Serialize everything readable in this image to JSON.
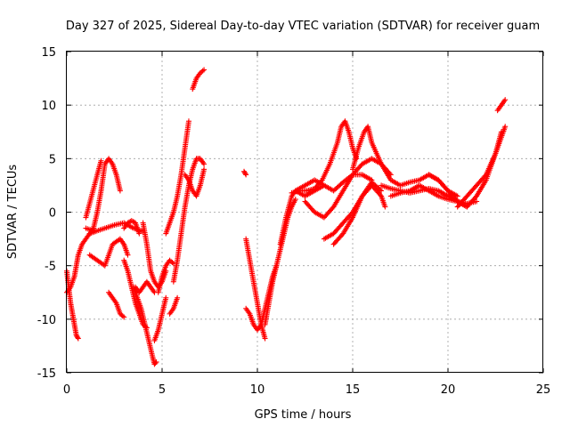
{
  "chart_data": {
    "type": "scatter",
    "title": "Day 327 of 2025, Sidereal Day-to-day VTEC variation (SDTVAR) for receiver guam",
    "xlabel": "GPS time / hours",
    "ylabel": "SDTVAR / TECUs",
    "xlim": [
      0,
      25
    ],
    "ylim": [
      -15,
      15
    ],
    "xticks": [
      0,
      5,
      10,
      15,
      20,
      25
    ],
    "yticks": [
      -15,
      -10,
      -5,
      0,
      5,
      10,
      15
    ],
    "xtick_labels": [
      "0",
      "5",
      "10",
      "15",
      "20",
      "25"
    ],
    "ytick_labels": [
      "-15",
      "-10",
      "-5",
      "0",
      "5",
      "10",
      "15"
    ],
    "grid": true,
    "marker": "+",
    "color": "#ff0000",
    "series": [
      {
        "x": [
          0.0,
          0.2,
          0.4,
          0.5,
          0.6,
          0.8,
          1.0,
          1.2,
          1.5
        ],
        "y": [
          -7.5,
          -7.0,
          -6.0,
          -5.0,
          -4.0,
          -3.0,
          -2.5,
          -2.0,
          -1.8
        ]
      },
      {
        "x": [
          0.0,
          0.1,
          0.2,
          0.3,
          0.4,
          0.5,
          0.6
        ],
        "y": [
          -5.5,
          -7.0,
          -8.5,
          -9.5,
          -10.5,
          -11.5,
          -11.8
        ]
      },
      {
        "x": [
          1.2,
          1.4,
          1.6,
          1.8,
          2.0,
          2.2,
          2.4,
          2.6,
          2.8
        ],
        "y": [
          -2.0,
          -1.5,
          0.0,
          2.0,
          4.5,
          5.0,
          4.5,
          3.5,
          2.0
        ]
      },
      {
        "x": [
          1.0,
          1.3,
          1.6,
          1.8
        ],
        "y": [
          -0.5,
          1.5,
          3.5,
          4.8
        ]
      },
      {
        "x": [
          1.2,
          1.6,
          2.0,
          2.4,
          2.8,
          3.0,
          3.2
        ],
        "y": [
          -4.0,
          -4.5,
          -5.0,
          -3.0,
          -2.5,
          -3.0,
          -4.0
        ]
      },
      {
        "x": [
          1.0,
          1.5,
          2.0,
          2.5,
          3.0,
          3.5,
          4.0
        ],
        "y": [
          -1.5,
          -1.8,
          -1.5,
          -1.2,
          -1.0,
          -1.5,
          -1.8
        ]
      },
      {
        "x": [
          2.2,
          2.4,
          2.6,
          2.8,
          3.0
        ],
        "y": [
          -7.5,
          -8.0,
          -8.5,
          -9.5,
          -9.8
        ]
      },
      {
        "x": [
          3.0,
          3.2,
          3.4,
          3.6,
          3.8,
          4.0,
          4.2
        ],
        "y": [
          -4.5,
          -5.5,
          -7.0,
          -8.5,
          -9.5,
          -10.5,
          -10.8
        ]
      },
      {
        "x": [
          3.5,
          3.7,
          3.9,
          4.1,
          4.3,
          4.5,
          4.6,
          4.7
        ],
        "y": [
          -7.0,
          -8.0,
          -9.0,
          -10.5,
          -12.0,
          -13.5,
          -14.2,
          -14.0
        ]
      },
      {
        "x": [
          3.0,
          3.2,
          3.4,
          3.6,
          3.8
        ],
        "y": [
          -1.5,
          -1.0,
          -0.8,
          -1.0,
          -2.0
        ]
      },
      {
        "x": [
          3.6,
          3.8,
          4.0,
          4.2,
          4.4,
          4.6
        ],
        "y": [
          -7.0,
          -7.5,
          -7.0,
          -6.5,
          -7.0,
          -7.5
        ]
      },
      {
        "x": [
          4.0,
          4.2,
          4.4,
          4.6,
          4.8,
          5.0,
          5.2
        ],
        "y": [
          -1.0,
          -3.0,
          -5.5,
          -6.5,
          -7.0,
          -6.5,
          -5.5
        ]
      },
      {
        "x": [
          4.6,
          4.8,
          5.0,
          5.2
        ],
        "y": [
          -12.0,
          -11.0,
          -9.5,
          -8.0
        ]
      },
      {
        "x": [
          4.8,
          5.0,
          5.2,
          5.4,
          5.6
        ],
        "y": [
          -7.5,
          -6.0,
          -5.0,
          -4.5,
          -4.8
        ]
      },
      {
        "x": [
          5.2,
          5.4,
          5.6,
          5.8,
          6.0,
          6.2,
          6.4
        ],
        "y": [
          -2.0,
          -1.0,
          0.0,
          1.5,
          3.5,
          6.0,
          8.5
        ]
      },
      {
        "x": [
          5.6,
          5.8,
          6.0,
          6.2,
          6.4,
          6.6,
          6.8,
          7.0,
          7.2
        ],
        "y": [
          -6.5,
          -4.5,
          -2.0,
          0.5,
          2.5,
          4.0,
          5.0,
          5.0,
          4.5
        ]
      },
      {
        "x": [
          6.2,
          6.4,
          6.6,
          6.8,
          7.0,
          7.2
        ],
        "y": [
          3.5,
          3.0,
          2.0,
          1.5,
          2.5,
          4.0
        ]
      },
      {
        "x": [
          6.6,
          6.8,
          7.0,
          7.2
        ],
        "y": [
          11.5,
          12.5,
          13.0,
          13.3
        ]
      },
      {
        "x": [
          5.4,
          5.6,
          5.8
        ],
        "y": [
          -9.5,
          -9.0,
          -8.0
        ]
      },
      {
        "x": [
          9.3,
          9.4
        ],
        "y": [
          3.8,
          3.5
        ]
      },
      {
        "x": [
          9.4,
          9.6,
          9.8,
          10.0,
          10.2,
          10.4
        ],
        "y": [
          -2.5,
          -4.5,
          -6.5,
          -8.5,
          -10.5,
          -11.8
        ]
      },
      {
        "x": [
          9.4,
          9.6,
          9.8,
          10.0,
          10.2,
          10.4,
          10.6,
          10.8,
          11.0
        ],
        "y": [
          -9.0,
          -9.5,
          -10.5,
          -11.0,
          -10.5,
          -9.0,
          -7.5,
          -6.0,
          -5.0
        ]
      },
      {
        "x": [
          10.4,
          10.6,
          10.8,
          11.0,
          11.2,
          11.4,
          11.6,
          11.8,
          12.0
        ],
        "y": [
          -10.5,
          -8.5,
          -6.5,
          -5.0,
          -3.5,
          -2.0,
          -0.5,
          0.5,
          1.2
        ]
      },
      {
        "x": [
          11.2,
          11.5,
          11.8,
          12.0,
          12.5,
          13.0,
          13.5
        ],
        "y": [
          -3.0,
          -0.5,
          1.5,
          2.0,
          1.5,
          2.0,
          2.5
        ]
      },
      {
        "x": [
          11.8,
          12.2,
          12.6,
          13.0,
          13.4,
          13.8,
          14.2,
          14.4,
          14.6,
          14.8,
          15.0,
          15.2
        ],
        "y": [
          1.8,
          2.0,
          2.0,
          2.2,
          3.0,
          4.5,
          6.5,
          8.0,
          8.5,
          7.5,
          6.0,
          5.0
        ]
      },
      {
        "x": [
          12.5,
          13.0,
          13.5,
          14.0,
          14.5,
          15.0,
          15.5,
          16.0,
          16.5
        ],
        "y": [
          1.0,
          0.0,
          -0.5,
          0.5,
          2.0,
          3.5,
          4.5,
          5.0,
          4.5
        ]
      },
      {
        "x": [
          13.5,
          14.0,
          14.5,
          15.0,
          15.5,
          16.0,
          16.5,
          16.7
        ],
        "y": [
          -2.5,
          -2.0,
          -1.0,
          0.0,
          1.5,
          2.5,
          1.5,
          0.5
        ]
      },
      {
        "x": [
          14.0,
          14.5,
          15.0,
          15.5,
          16.0,
          16.5
        ],
        "y": [
          -3.0,
          -2.0,
          -0.5,
          1.5,
          2.8,
          2.0
        ]
      },
      {
        "x": [
          12.0,
          12.5,
          13.0,
          13.5,
          14.0,
          14.5,
          15.0,
          15.5,
          16.0
        ],
        "y": [
          2.0,
          2.5,
          3.0,
          2.5,
          2.0,
          2.8,
          3.5,
          3.5,
          3.0
        ]
      },
      {
        "x": [
          15.0,
          15.3,
          15.6,
          15.8,
          16.0,
          16.5,
          17.0
        ],
        "y": [
          4.0,
          6.0,
          7.5,
          8.0,
          6.5,
          4.5,
          3.5
        ]
      },
      {
        "x": [
          16.5,
          17.0,
          17.5,
          18.0,
          18.5,
          19.0,
          19.5,
          20.0,
          20.5
        ],
        "y": [
          4.5,
          3.0,
          2.5,
          2.8,
          3.0,
          3.5,
          3.0,
          2.0,
          1.5
        ]
      },
      {
        "x": [
          16.5,
          17.0,
          17.5,
          18.0,
          18.5,
          19.0,
          19.5,
          20.0,
          20.5,
          21.0
        ],
        "y": [
          2.5,
          2.2,
          2.0,
          1.8,
          2.0,
          2.2,
          2.0,
          1.5,
          1.0,
          0.5
        ]
      },
      {
        "x": [
          17.0,
          17.5,
          18.0,
          18.5,
          19.0,
          19.5,
          20.0,
          20.5,
          21.0,
          21.5
        ],
        "y": [
          1.5,
          1.8,
          2.0,
          2.5,
          2.0,
          1.5,
          1.2,
          1.0,
          0.8,
          1.0
        ]
      },
      {
        "x": [
          19.0,
          19.5,
          20.0,
          20.5,
          21.0,
          21.5,
          22.0,
          22.5,
          22.8
        ],
        "y": [
          3.5,
          3.0,
          2.0,
          1.0,
          0.5,
          1.5,
          3.0,
          5.5,
          7.5
        ]
      },
      {
        "x": [
          20.5,
          21.0,
          21.5,
          22.0,
          22.5,
          22.8,
          23.0
        ],
        "y": [
          0.5,
          1.5,
          2.5,
          3.5,
          5.5,
          7.0,
          8.0
        ]
      },
      {
        "x": [
          22.6,
          22.8,
          23.0
        ],
        "y": [
          9.5,
          10.0,
          10.5
        ]
      }
    ]
  }
}
